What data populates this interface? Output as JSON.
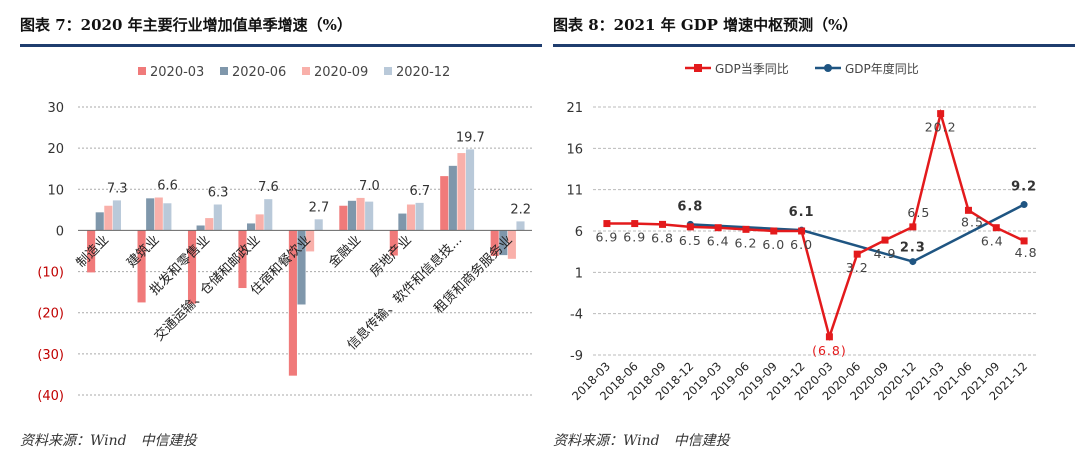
{
  "left": {
    "title": "图表 7：2020 年主要行业增加值单季增速（%）",
    "source": "资料来源：Wind　中信建投",
    "chart_data": {
      "type": "bar",
      "categories": [
        "制造业",
        "建筑业",
        "批发和零售业",
        "交通运输、仓储和邮政业",
        "住宿和餐饮业",
        "金融业",
        "房地产业",
        "信息传输、软件和信息技...",
        "租赁和商务服务业"
      ],
      "series": [
        {
          "name": "2020-03",
          "color": "#f07a7a",
          "values": [
            -10.2,
            -17.5,
            -17.8,
            -14.0,
            -35.3,
            6.0,
            -6.1,
            13.2,
            -6.2
          ]
        },
        {
          "name": "2020-06",
          "color": "#7f97ab",
          "values": [
            4.4,
            7.8,
            1.2,
            1.7,
            -18.0,
            7.2,
            4.1,
            15.7,
            -6.0
          ]
        },
        {
          "name": "2020-09",
          "color": "#f9b0aa",
          "values": [
            6.0,
            8.0,
            3.0,
            3.9,
            -5.1,
            7.9,
            6.3,
            18.8,
            -6.9
          ]
        },
        {
          "name": "2020-12",
          "color": "#b9c9d9",
          "values": [
            7.3,
            6.6,
            6.3,
            7.6,
            2.7,
            7.0,
            6.7,
            19.7,
            2.2
          ]
        }
      ],
      "data_labels": [
        "7.3",
        "6.6",
        "6.3",
        "7.6",
        "2.7",
        "7.0",
        "6.7",
        "19.7",
        "2.2"
      ],
      "yticks": [
        "30",
        "20",
        "10",
        "0",
        "(10)",
        "(20)",
        "(30)",
        "(40)"
      ],
      "ytick_values": [
        30,
        20,
        10,
        0,
        -10,
        -20,
        -30,
        -40
      ],
      "ylim": [
        -40,
        30
      ],
      "grid": true,
      "legend": "top"
    }
  },
  "right": {
    "title": "图表 8：2021 年 GDP 增速中枢预测（%）",
    "source": "资料来源：Wind　中信建投",
    "chart_data": {
      "type": "line",
      "categories": [
        "2018-03",
        "2018-06",
        "2018-09",
        "2018-12",
        "2019-03",
        "2019-06",
        "2019-09",
        "2019-12",
        "2020-03",
        "2020-06",
        "2020-09",
        "2020-12",
        "2021-03",
        "2021-06",
        "2021-09",
        "2021-12"
      ],
      "series": [
        {
          "name": "GDP当季同比",
          "color": "#e31a1c",
          "values": [
            6.9,
            6.9,
            6.8,
            6.5,
            6.4,
            6.2,
            6.0,
            6.0,
            -6.8,
            3.2,
            4.9,
            6.5,
            20.2,
            8.5,
            6.4,
            4.8
          ],
          "labels": [
            "6.9",
            "6.9",
            "6.8",
            "6.5",
            "6.4",
            "6.2",
            "6.0",
            "6.0",
            "(6.8)",
            "3.2",
            "4.9",
            "6.5",
            "20.2",
            "8.5",
            "6.4",
            "4.8"
          ]
        },
        {
          "name": "GDP年度同比",
          "color": "#1f5582",
          "points": [
            [
              3,
              6.8
            ],
            [
              7,
              6.1
            ],
            [
              11,
              2.3
            ],
            [
              15,
              9.2
            ]
          ],
          "labels": [
            "6.8",
            "6.1",
            "2.3",
            "9.2"
          ]
        }
      ],
      "yticks": [
        "21",
        "16",
        "11",
        "6",
        "1",
        "-4",
        "-9"
      ],
      "ytick_values": [
        21,
        16,
        11,
        6,
        1,
        -4,
        -9
      ],
      "ylim": [
        -9,
        21
      ],
      "grid": true,
      "legend": "top"
    }
  }
}
